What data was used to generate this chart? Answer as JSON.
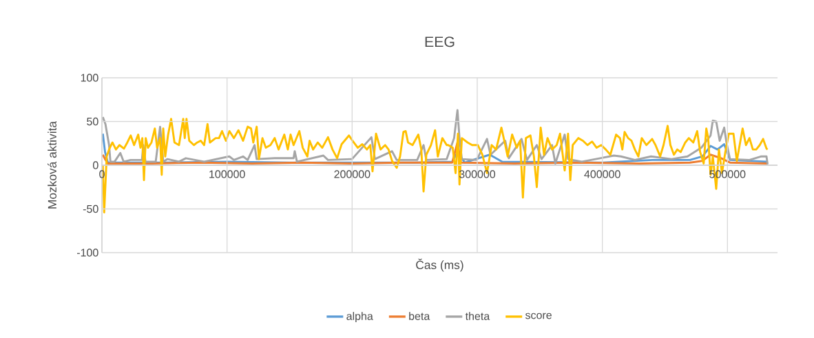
{
  "chart_data": {
    "type": "line",
    "title": "EEG",
    "xlabel": "Čas (ms)",
    "ylabel": "Mozková aktivita",
    "xlim": [
      0,
      540000
    ],
    "xticks": [
      0,
      100000,
      200000,
      300000,
      400000,
      500000
    ],
    "ylim": [
      -100,
      100
    ],
    "yticks": [
      -100,
      -50,
      0,
      50,
      100
    ],
    "grid": true,
    "legend": "bottom",
    "marker": "none",
    "line_style": "solid",
    "series": [
      {
        "name": "alpha",
        "color": "#5b9bd5",
        "x": [
          700,
          2500,
          4700,
          50000,
          100000,
          150000,
          200000,
          250000,
          280000,
          284200,
          290000,
          310000,
          320000,
          400000,
          440000,
          470000,
          480000,
          486500,
          492000,
          497400,
          502000,
          532100
        ],
        "values": [
          36,
          15,
          3,
          3,
          4,
          3,
          3,
          3,
          4,
          15,
          3,
          12,
          4,
          3,
          6,
          6,
          10,
          22,
          18,
          24,
          6,
          4
        ]
      },
      {
        "name": "beta",
        "color": "#ed7d31",
        "x": [
          700,
          2500,
          4700,
          40000,
          80000,
          120000,
          160000,
          200000,
          240000,
          280000,
          284200,
          287000,
          330000,
          380000,
          430000,
          470000,
          480000,
          486500,
          495000,
          502000,
          532100
        ],
        "values": [
          12,
          7,
          2,
          2,
          3,
          2,
          3,
          2,
          3,
          3,
          26,
          3,
          2,
          3,
          2,
          3,
          5,
          12,
          8,
          3,
          2
        ]
      },
      {
        "name": "theta",
        "color": "#a5a5a5",
        "x": [
          700,
          2800,
          5700,
          6800,
          10100,
          14700,
          17400,
          22900,
          32000,
          33000,
          34800,
          43000,
          46500,
          49000,
          52400,
          61500,
          67100,
          81700,
          101800,
          105500,
          112800,
          116500,
          122000,
          123700,
          138100,
          153200,
          154100,
          155900,
          177000,
          180700,
          199900,
          215400,
          218200,
          231900,
          235600,
          252000,
          257100,
          259300,
          275600,
          281500,
          284200,
          285800,
          287700,
          299600,
          307800,
          310600,
          322400,
          325200,
          335400,
          339800,
          347600,
          351400,
          359800,
          362400,
          369900,
          372600,
          383600,
          398200,
          409200,
          414900,
          426000,
          438900,
          455300,
          468100,
          479100,
          486500,
          488300,
          491000,
          493800,
          497400,
          499200,
          502000,
          517600,
          526700,
          531200,
          532100
        ],
        "values": [
          55,
          47,
          23,
          4,
          4,
          14,
          4,
          6,
          6,
          23,
          4,
          4,
          44,
          4,
          7,
          4,
          8,
          4,
          10,
          6,
          10,
          6,
          23,
          7,
          8,
          8,
          16,
          4,
          11,
          6,
          7,
          32,
          7,
          16,
          6,
          6,
          23,
          6,
          7,
          31,
          63,
          31,
          7,
          6,
          30,
          12,
          28,
          8,
          30,
          6,
          23,
          7,
          23,
          2,
          35,
          7,
          4,
          8,
          11,
          10,
          6,
          10,
          7,
          10,
          20,
          34,
          51,
          50,
          28,
          43,
          26,
          7,
          6,
          10,
          10,
          1
        ]
      },
      {
        "name": "score",
        "color": "#ffc000",
        "x": [
          700,
          1800,
          3800,
          5700,
          8400,
          11200,
          14000,
          17600,
          20300,
          23000,
          25700,
          29000,
          30800,
          32300,
          33600,
          35000,
          36800,
          39600,
          42300,
          44100,
          46500,
          47800,
          49000,
          50600,
          52800,
          55300,
          58000,
          61600,
          65000,
          66200,
          67600,
          69800,
          73500,
          76200,
          79000,
          81700,
          84400,
          86300,
          90900,
          93600,
          96000,
          99100,
          101900,
          105500,
          109100,
          112800,
          116500,
          119200,
          121000,
          123700,
          125500,
          128300,
          131000,
          134700,
          138100,
          141200,
          145800,
          148600,
          150800,
          153200,
          157800,
          160500,
          164200,
          166000,
          168800,
          172500,
          176100,
          180700,
          184300,
          188000,
          191600,
          197500,
          200800,
          204500,
          208100,
          211800,
          214500,
          216300,
          219100,
          222700,
          226400,
          229100,
          231900,
          235600,
          238300,
          241000,
          242800,
          244700,
          248300,
          252900,
          255300,
          257100,
          259300,
          263000,
          266300,
          268500,
          272100,
          275600,
          276800,
          280400,
          282700,
          284600,
          285800,
          287700,
          292300,
          295900,
          300500,
          304100,
          307800,
          311500,
          315100,
          319300,
          322400,
          324300,
          327900,
          331600,
          334300,
          336500,
          338900,
          342500,
          345300,
          347600,
          350700,
          353400,
          356200,
          359800,
          363500,
          366200,
          369900,
          372600,
          374400,
          376300,
          380800,
          384500,
          388100,
          391800,
          395400,
          399100,
          402700,
          406400,
          411000,
          414100,
          416000,
          417800,
          420600,
          423300,
          426000,
          428800,
          431500,
          435200,
          439800,
          442500,
          446200,
          448900,
          452200,
          454400,
          457200,
          459900,
          462600,
          466300,
          469100,
          472700,
          475800,
          478200,
          481000,
          483100,
          484600,
          486500,
          488300,
          491000,
          493200,
          495600,
          498300,
          501100,
          504800,
          507500,
          512100,
          514800,
          517600,
          520300,
          523000,
          525800,
          528500,
          531200,
          532100
        ],
        "values": [
          0,
          -54,
          10,
          18,
          26,
          18,
          23,
          19,
          26,
          34,
          23,
          35,
          20,
          31,
          -17,
          31,
          20,
          26,
          42,
          20,
          31,
          -11,
          42,
          10,
          34,
          53,
          26,
          23,
          53,
          31,
          53,
          28,
          23,
          26,
          28,
          23,
          47,
          26,
          31,
          31,
          39,
          28,
          39,
          31,
          40,
          28,
          44,
          42,
          26,
          44,
          7,
          31,
          20,
          23,
          31,
          18,
          35,
          18,
          35,
          23,
          39,
          20,
          10,
          28,
          18,
          26,
          20,
          32,
          18,
          8,
          24,
          34,
          27,
          20,
          24,
          18,
          23,
          -7,
          36,
          18,
          23,
          18,
          5,
          -3,
          10,
          38,
          39,
          26,
          23,
          35,
          18,
          -30,
          12,
          23,
          40,
          10,
          31,
          23,
          23,
          20,
          -9,
          36,
          -22,
          31,
          26,
          23,
          23,
          12,
          -9,
          23,
          18,
          43,
          23,
          10,
          35,
          20,
          28,
          -37,
          31,
          34,
          10,
          -25,
          43,
          12,
          31,
          18,
          23,
          36,
          -6,
          36,
          -17,
          23,
          31,
          28,
          23,
          27,
          20,
          23,
          18,
          12,
          35,
          31,
          18,
          38,
          31,
          28,
          18,
          10,
          31,
          23,
          30,
          23,
          10,
          23,
          45,
          23,
          12,
          18,
          15,
          26,
          31,
          26,
          39,
          15,
          2,
          42,
          31,
          -11,
          10,
          -27,
          18,
          -9,
          15,
          36,
          36,
          5,
          42,
          23,
          31,
          18,
          18,
          23,
          30,
          19,
          18
        ]
      }
    ]
  }
}
